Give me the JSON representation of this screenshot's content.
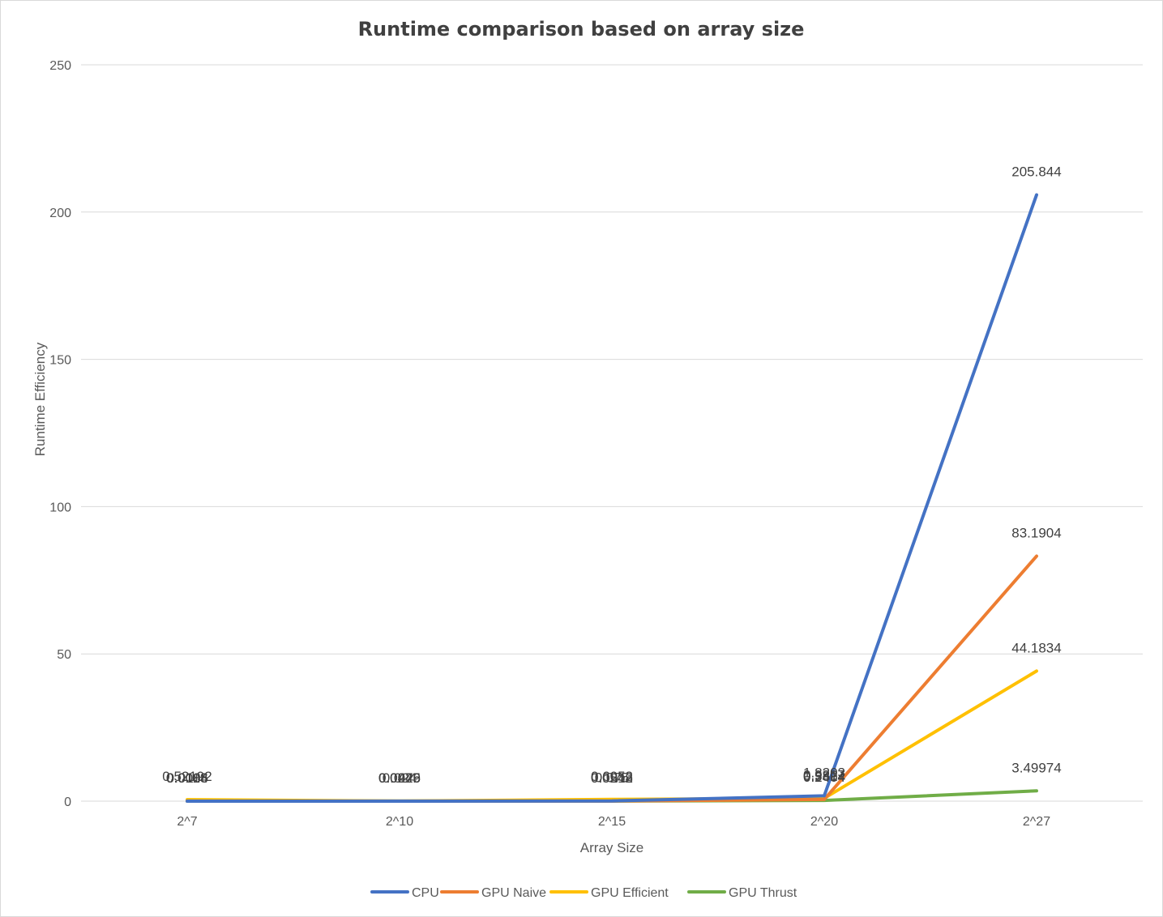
{
  "chart_data": {
    "type": "line",
    "title": "Runtime comparison based on array size",
    "xlabel": "Array Size",
    "ylabel": "Runtime Efficiency",
    "categories": [
      "2^7",
      "2^10",
      "2^15",
      "2^20",
      "2^27"
    ],
    "ylim": [
      0,
      250
    ],
    "yticks": [
      0,
      50,
      100,
      150,
      200,
      250
    ],
    "grid": true,
    "legend_position": "bottom",
    "series": [
      {
        "name": "CPU",
        "color": "#4472c4",
        "values": [
          0.0006,
          0.0025,
          0.075,
          1.8203,
          205.844
        ],
        "labels": [
          "0.0006",
          "0.0025",
          "0.075",
          "1.8203",
          "205.844"
        ]
      },
      {
        "name": "GPU Naive",
        "color": "#ed7d31",
        "values": [
          0.0184,
          0.0276,
          0.0512,
          0.5814,
          83.1904
        ],
        "labels": [
          "0.0184",
          "0.0276",
          "0.0512",
          "0.5814",
          "83.1904"
        ]
      },
      {
        "name": "GPU Efficient",
        "color": "#ffc000",
        "values": [
          0.52192,
          0.0449,
          0.6053,
          0.9827,
          44.1834
        ],
        "labels": [
          "0.52192",
          "0.0449",
          "0.6053",
          "0.9827",
          "44.1834"
        ]
      },
      {
        "name": "GPU Thrust",
        "color": "#70ad47",
        "values": [
          0.0118,
          0.024,
          0.0248,
          0.2404,
          3.49974
        ],
        "labels": [
          "0.0118",
          "0.024",
          "0.0248",
          "0.2404",
          "3.49974"
        ]
      }
    ]
  }
}
